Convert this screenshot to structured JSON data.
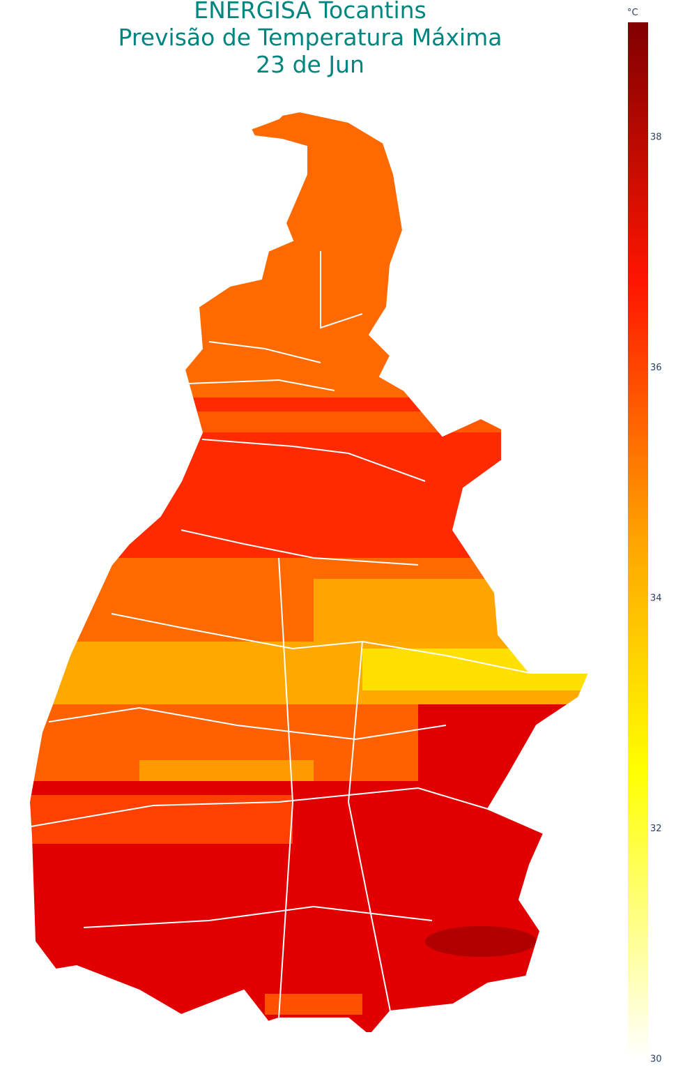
{
  "map": {
    "title": [
      "ENERGISA Tocantins",
      "Previsão de Temperatura Máxima",
      "23 de Jun"
    ],
    "colorbar": {
      "title": "°C",
      "range": [
        30,
        39
      ],
      "ticks": [
        30,
        32,
        34,
        36,
        38
      ]
    }
  }
}
